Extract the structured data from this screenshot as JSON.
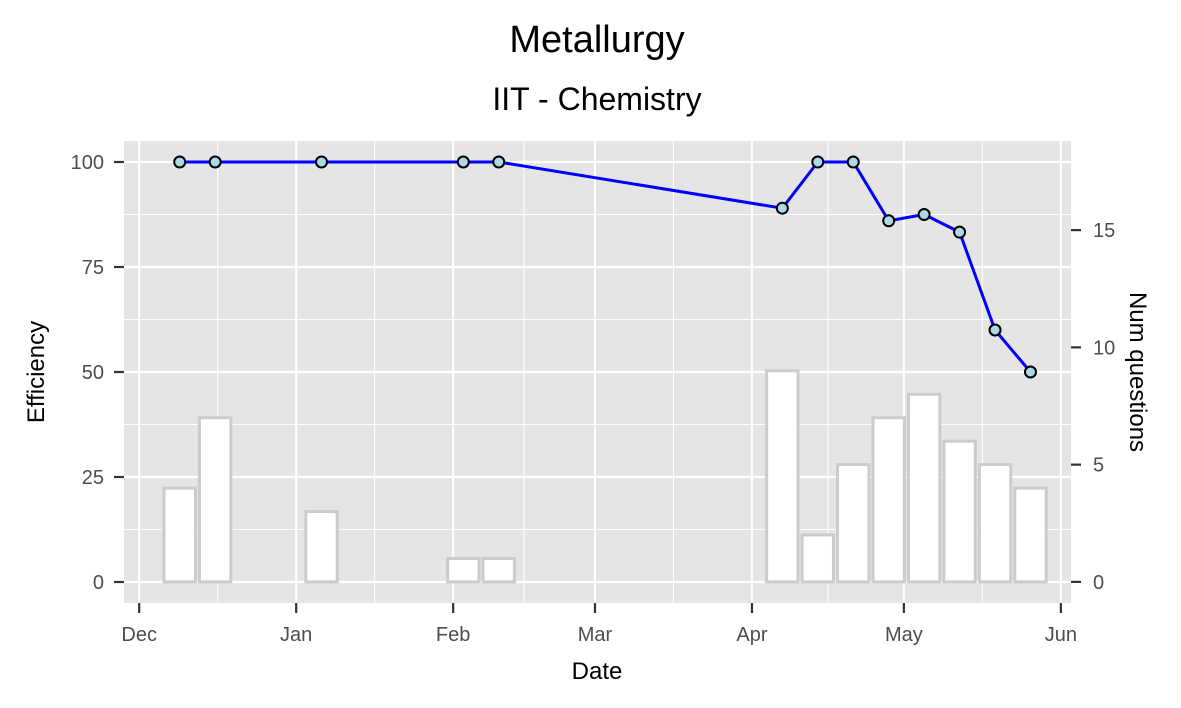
{
  "chart_data": {
    "type": "line",
    "title": "Metallurgy",
    "subtitle": "IIT - Chemistry",
    "xlabel": "Date",
    "ylabel": "Efficiency",
    "y2label": "Num questions",
    "xlim": [
      "2017-11-28",
      "2018-06-03"
    ],
    "ylim": [
      -5,
      105
    ],
    "y2lim": [
      -0.9,
      18.8
    ],
    "x_ticks": [
      {
        "date": "2017-12-01",
        "label": "Dec"
      },
      {
        "date": "2018-01-01",
        "label": "Jan"
      },
      {
        "date": "2018-02-01",
        "label": "Feb"
      },
      {
        "date": "2018-03-01",
        "label": "Mar"
      },
      {
        "date": "2018-04-01",
        "label": "Apr"
      },
      {
        "date": "2018-05-01",
        "label": "May"
      },
      {
        "date": "2018-06-01",
        "label": "Jun"
      }
    ],
    "y_ticks": [
      0,
      25,
      50,
      75,
      100
    ],
    "y2_ticks": [
      0,
      5,
      10,
      15
    ],
    "grid": true,
    "colors": {
      "panel": "#e5e5e5",
      "grid": "#ffffff",
      "line": "#0000ff",
      "point_fill": "#add8e6",
      "point_stroke": "#000000",
      "bar_fill": "#ffffff",
      "bar_stroke": "#cccccc"
    },
    "series": [
      {
        "type": "line",
        "x": [
          "2017-12-09",
          "2017-12-16",
          "2018-01-06",
          "2018-02-03",
          "2018-02-10",
          "2018-04-07",
          "2018-04-14",
          "2018-04-21",
          "2018-04-28",
          "2018-05-05",
          "2018-05-12",
          "2018-05-19",
          "2018-05-26"
        ],
        "values": [
          100,
          100,
          100,
          100,
          100,
          89,
          100,
          100,
          86,
          87.5,
          83.3,
          60,
          50
        ]
      },
      {
        "type": "bar",
        "axis": "right",
        "bar_width_days": 6.2,
        "x": [
          "2017-12-09",
          "2017-12-16",
          "2018-01-06",
          "2018-02-03",
          "2018-02-10",
          "2018-04-07",
          "2018-04-14",
          "2018-04-21",
          "2018-04-28",
          "2018-05-05",
          "2018-05-12",
          "2018-05-19",
          "2018-05-26"
        ],
        "values": [
          4,
          7,
          3,
          1,
          1,
          9,
          2,
          5,
          7,
          8,
          6,
          5,
          4
        ]
      }
    ]
  }
}
